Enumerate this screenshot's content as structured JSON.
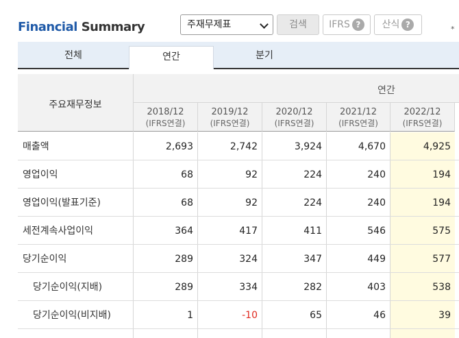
{
  "title": {
    "part1": "Financial",
    "part2": "Summary"
  },
  "toolbar": {
    "report_select": "주재무제표",
    "search_label": "검색",
    "ifrs_label": "IFRS",
    "formula_label": "산식",
    "help_glyph": "?",
    "star": "*"
  },
  "tabs": {
    "all": "전체",
    "annual": "연간",
    "quarterly": "분기"
  },
  "table": {
    "corner_label": "주요재무정보",
    "group_label": "연간",
    "columns": [
      {
        "period": "2018/12",
        "basis": "(IFRS연결)"
      },
      {
        "period": "2019/12",
        "basis": "(IFRS연결)"
      },
      {
        "period": "2020/12",
        "basis": "(IFRS연결)"
      },
      {
        "period": "2021/12",
        "basis": "(IFRS연결)"
      },
      {
        "period": "2022/12",
        "basis": "(IFRS연결)"
      }
    ],
    "rows": [
      {
        "label": "매출액",
        "values": [
          "2,693",
          "2,742",
          "3,924",
          "4,670",
          "4,925"
        ]
      },
      {
        "label": "영업이익",
        "values": [
          "68",
          "92",
          "224",
          "240",
          "194"
        ]
      },
      {
        "label": "영업이익(발표기준)",
        "values": [
          "68",
          "92",
          "224",
          "240",
          "194"
        ]
      },
      {
        "label": "세전계속사업이익",
        "values": [
          "364",
          "417",
          "411",
          "546",
          "575"
        ]
      },
      {
        "label": "당기순이익",
        "values": [
          "289",
          "324",
          "347",
          "449",
          "577"
        ]
      },
      {
        "label": "당기순이익(지배)",
        "values": [
          "289",
          "334",
          "282",
          "403",
          "538"
        ]
      },
      {
        "label": "당기순이익(비지배)",
        "values": [
          "1",
          "-10",
          "65",
          "46",
          "39"
        ]
      }
    ]
  },
  "colors": {
    "brand": "#1f5aa8",
    "negative": "#e0281e",
    "tab_bar": "#e6eef7"
  }
}
